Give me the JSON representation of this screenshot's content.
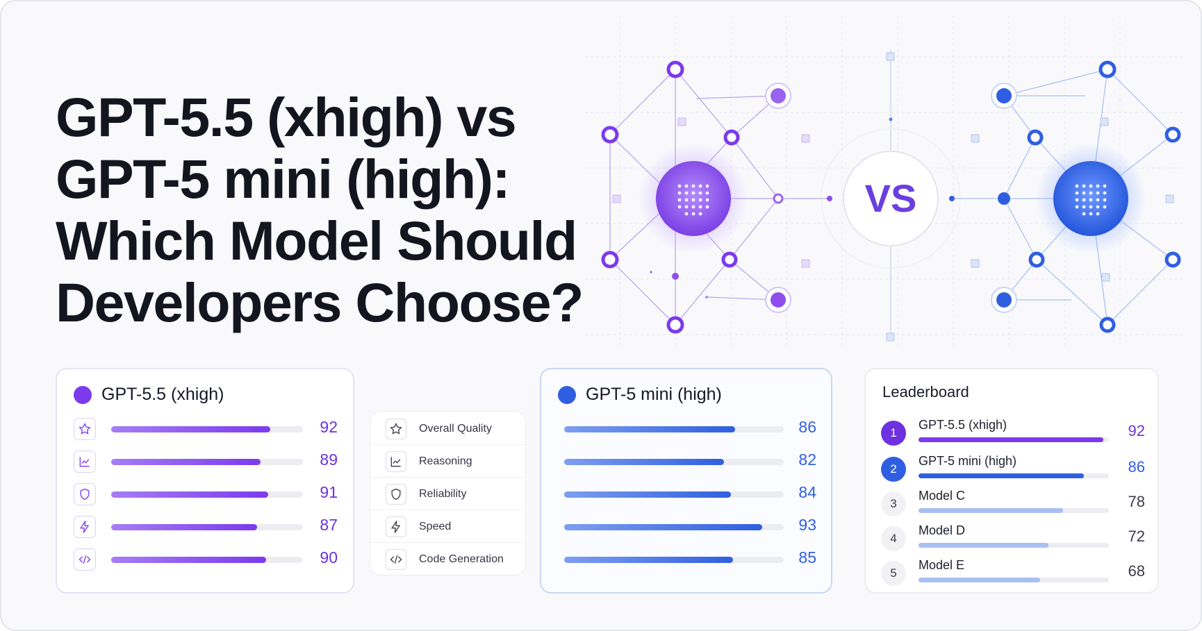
{
  "title_lines": [
    "GPT-5.5 (xhigh) vs",
    "GPT-5 mini (high):",
    "Which Model Should",
    "Developers Choose?"
  ],
  "vs_label": "VS",
  "colors": {
    "purple": "#7c3aed",
    "purple_light": "#a78bfa",
    "blue": "#2f5fe0",
    "blue_light": "#9db5f2"
  },
  "model_a": {
    "name": "GPT-5.5 (xhigh)",
    "metrics": [
      {
        "icon": "star-icon",
        "value": 92,
        "fill": 0.83
      },
      {
        "icon": "chart-line-icon",
        "value": 89,
        "fill": 0.78
      },
      {
        "icon": "shield-icon",
        "value": 91,
        "fill": 0.82
      },
      {
        "icon": "lightning-icon",
        "value": 87,
        "fill": 0.76
      },
      {
        "icon": "code-icon",
        "value": 90,
        "fill": 0.81
      }
    ]
  },
  "categories": [
    {
      "icon": "star-icon",
      "label": "Overall Quality"
    },
    {
      "icon": "chart-line-icon",
      "label": "Reasoning"
    },
    {
      "icon": "shield-icon",
      "label": "Reliability"
    },
    {
      "icon": "lightning-icon",
      "label": "Speed"
    },
    {
      "icon": "code-icon",
      "label": "Code Generation"
    }
  ],
  "model_b": {
    "name": "GPT-5 mini (high)",
    "metrics": [
      {
        "value": 86,
        "fill": 0.78
      },
      {
        "value": 82,
        "fill": 0.72
      },
      {
        "value": 84,
        "fill": 0.76
      },
      {
        "value": 93,
        "fill": 0.9
      },
      {
        "value": 85,
        "fill": 0.77
      }
    ]
  },
  "leaderboard": {
    "title": "Leaderboard",
    "entries": [
      {
        "rank": "1",
        "name": "GPT-5.5 (xhigh)",
        "score": "92",
        "fill": 0.97,
        "style": "purple"
      },
      {
        "rank": "2",
        "name": "GPT-5 mini (high)",
        "score": "86",
        "fill": 0.87,
        "style": "blue"
      },
      {
        "rank": "3",
        "name": "Model C",
        "score": "78",
        "fill": 0.76,
        "style": "plain"
      },
      {
        "rank": "4",
        "name": "Model D",
        "score": "72",
        "fill": 0.68,
        "style": "plain"
      },
      {
        "rank": "5",
        "name": "Model E",
        "score": "68",
        "fill": 0.64,
        "style": "plain"
      }
    ]
  }
}
